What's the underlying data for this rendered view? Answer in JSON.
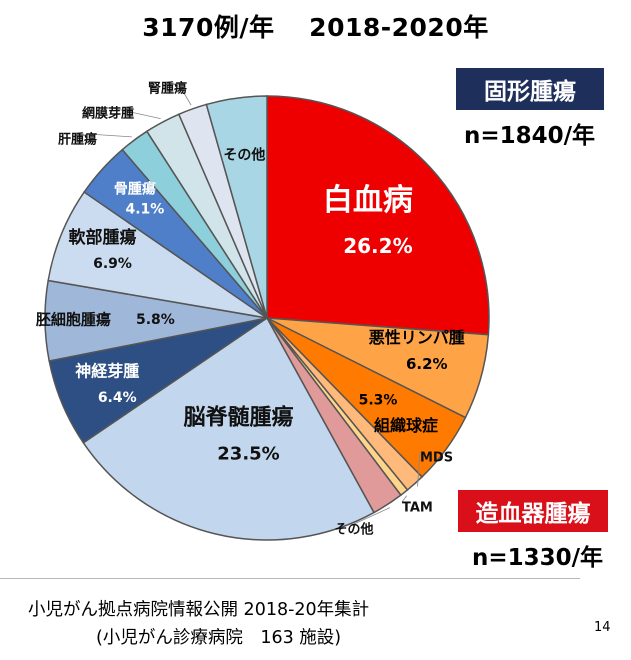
{
  "title": "3170例/年　 2018-2020年",
  "groups": {
    "solid": {
      "label": "固形腫瘍",
      "count": "n=1840/年"
    },
    "heme": {
      "label": "造血器腫瘍",
      "count": "n=1330/年"
    }
  },
  "source": {
    "line1": "小児がん拠点病院情報公開 2018-20年集計",
    "line2": "(小児がん診療病院　163 施設)"
  },
  "page_number": "14",
  "chart_data": {
    "type": "pie",
    "total_per_year": 3170,
    "slices": [
      {
        "label": "白血病",
        "pct_label": "26.2%",
        "value": 26.2,
        "color": "#ee0000",
        "group": "heme"
      },
      {
        "label": "悪性リンパ腫",
        "pct_label": "6.2%",
        "value": 6.2,
        "color": "#ffa347",
        "group": "heme"
      },
      {
        "label": "組織球症",
        "pct_label": "5.3%",
        "value": 5.3,
        "color": "#ff7a00",
        "group": "heme"
      },
      {
        "label": "MDS",
        "pct_label": "",
        "value": 1.4,
        "color": "#ffb97a",
        "group": "heme"
      },
      {
        "label": "TAM",
        "pct_label": "",
        "value": 0.6,
        "color": "#ffd58a",
        "group": "heme"
      },
      {
        "label": "その他",
        "pct_label": "",
        "value": 2.3,
        "color": "#e09a9a",
        "group": "heme"
      },
      {
        "label": "脳脊髄腫瘍",
        "pct_label": "23.5%",
        "value": 23.5,
        "color": "#c2d6ee",
        "group": "solid"
      },
      {
        "label": "神経芽腫",
        "pct_label": "6.4%",
        "value": 6.4,
        "color": "#2d4f84",
        "group": "solid"
      },
      {
        "label": "胚細胞腫瘍",
        "pct_label": "5.8%",
        "value": 5.8,
        "color": "#9fb8da",
        "group": "solid"
      },
      {
        "label": "軟部腫瘍",
        "pct_label": "6.9%",
        "value": 6.9,
        "color": "#ccdcf0",
        "group": "solid"
      },
      {
        "label": "骨腫瘍",
        "pct_label": "4.1%",
        "value": 4.1,
        "color": "#4f7fc9",
        "group": "solid"
      },
      {
        "label": "肝腫瘍",
        "pct_label": "",
        "value": 2.2,
        "color": "#8ecfdc",
        "group": "solid"
      },
      {
        "label": "網膜芽腫",
        "pct_label": "",
        "value": 2.6,
        "color": "#d0e4ea",
        "group": "solid"
      },
      {
        "label": "腎腫瘍",
        "pct_label": "",
        "value": 2.1,
        "color": "#dfe5f0",
        "group": "solid"
      },
      {
        "label": "その他",
        "pct_label": "",
        "value": 4.4,
        "color": "#a8d6e4",
        "group": "solid"
      }
    ]
  }
}
